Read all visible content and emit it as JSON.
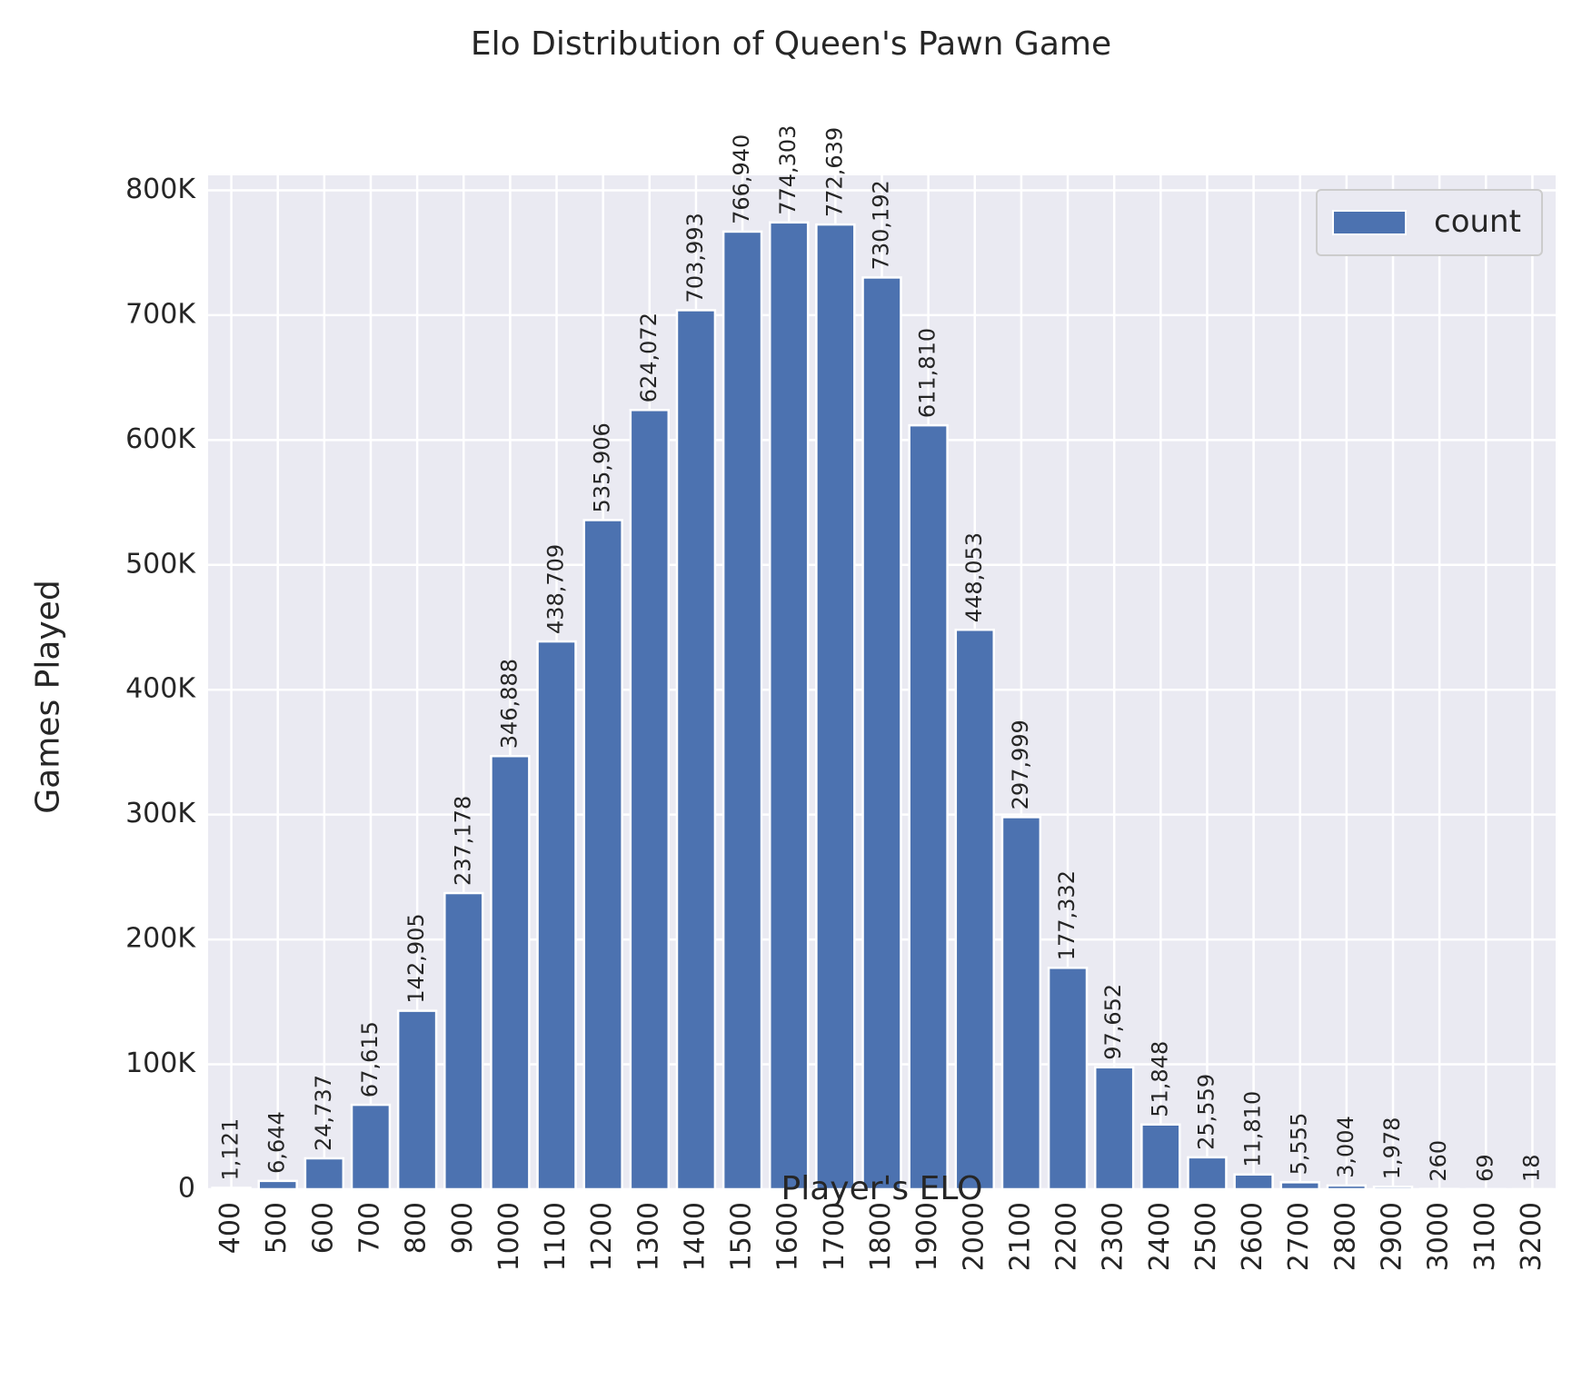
{
  "chart_data": {
    "type": "bar",
    "title": "Elo Distribution of Queen's Pawn Game",
    "xlabel": "Player's ELO",
    "ylabel": "Games Played",
    "categories": [
      "400",
      "500",
      "600",
      "700",
      "800",
      "900",
      "1000",
      "1100",
      "1200",
      "1300",
      "1400",
      "1500",
      "1600",
      "1700",
      "1800",
      "1900",
      "2000",
      "2100",
      "2200",
      "2300",
      "2400",
      "2500",
      "2600",
      "2700",
      "2800",
      "2900",
      "3000",
      "3100",
      "3200"
    ],
    "series": [
      {
        "name": "count",
        "values": [
          1121,
          6644,
          24737,
          67615,
          142905,
          237178,
          346888,
          438709,
          535906,
          624072,
          703993,
          766940,
          774303,
          772639,
          730192,
          611810,
          448053,
          297999,
          177332,
          97652,
          51848,
          25559,
          11810,
          5555,
          3004,
          1978,
          260,
          69,
          18
        ],
        "data_labels": [
          "1,121",
          "6,644",
          "24,737",
          "67,615",
          "142,905",
          "237,178",
          "346,888",
          "438,709",
          "535,906",
          "624,072",
          "703,993",
          "766,940",
          "774,303",
          "772,639",
          "730,192",
          "611,810",
          "448,053",
          "297,999",
          "177,332",
          "97,652",
          "51,848",
          "25,559",
          "11,810",
          "5,555",
          "3,004",
          "1,978",
          "260",
          "69",
          "18"
        ]
      }
    ],
    "yticks": [
      0,
      100000,
      200000,
      300000,
      400000,
      500000,
      600000,
      700000,
      800000
    ],
    "ytick_labels": [
      "0",
      "100K",
      "200K",
      "300K",
      "400K",
      "500K",
      "600K",
      "700K",
      "800K"
    ],
    "ylim": [
      0,
      812000
    ],
    "grid": true,
    "legend": {
      "position": "top-right",
      "entries": [
        "count"
      ]
    },
    "colors": {
      "bar": "#4c72b0",
      "background": "#eaeaf2",
      "grid": "#ffffff"
    }
  }
}
